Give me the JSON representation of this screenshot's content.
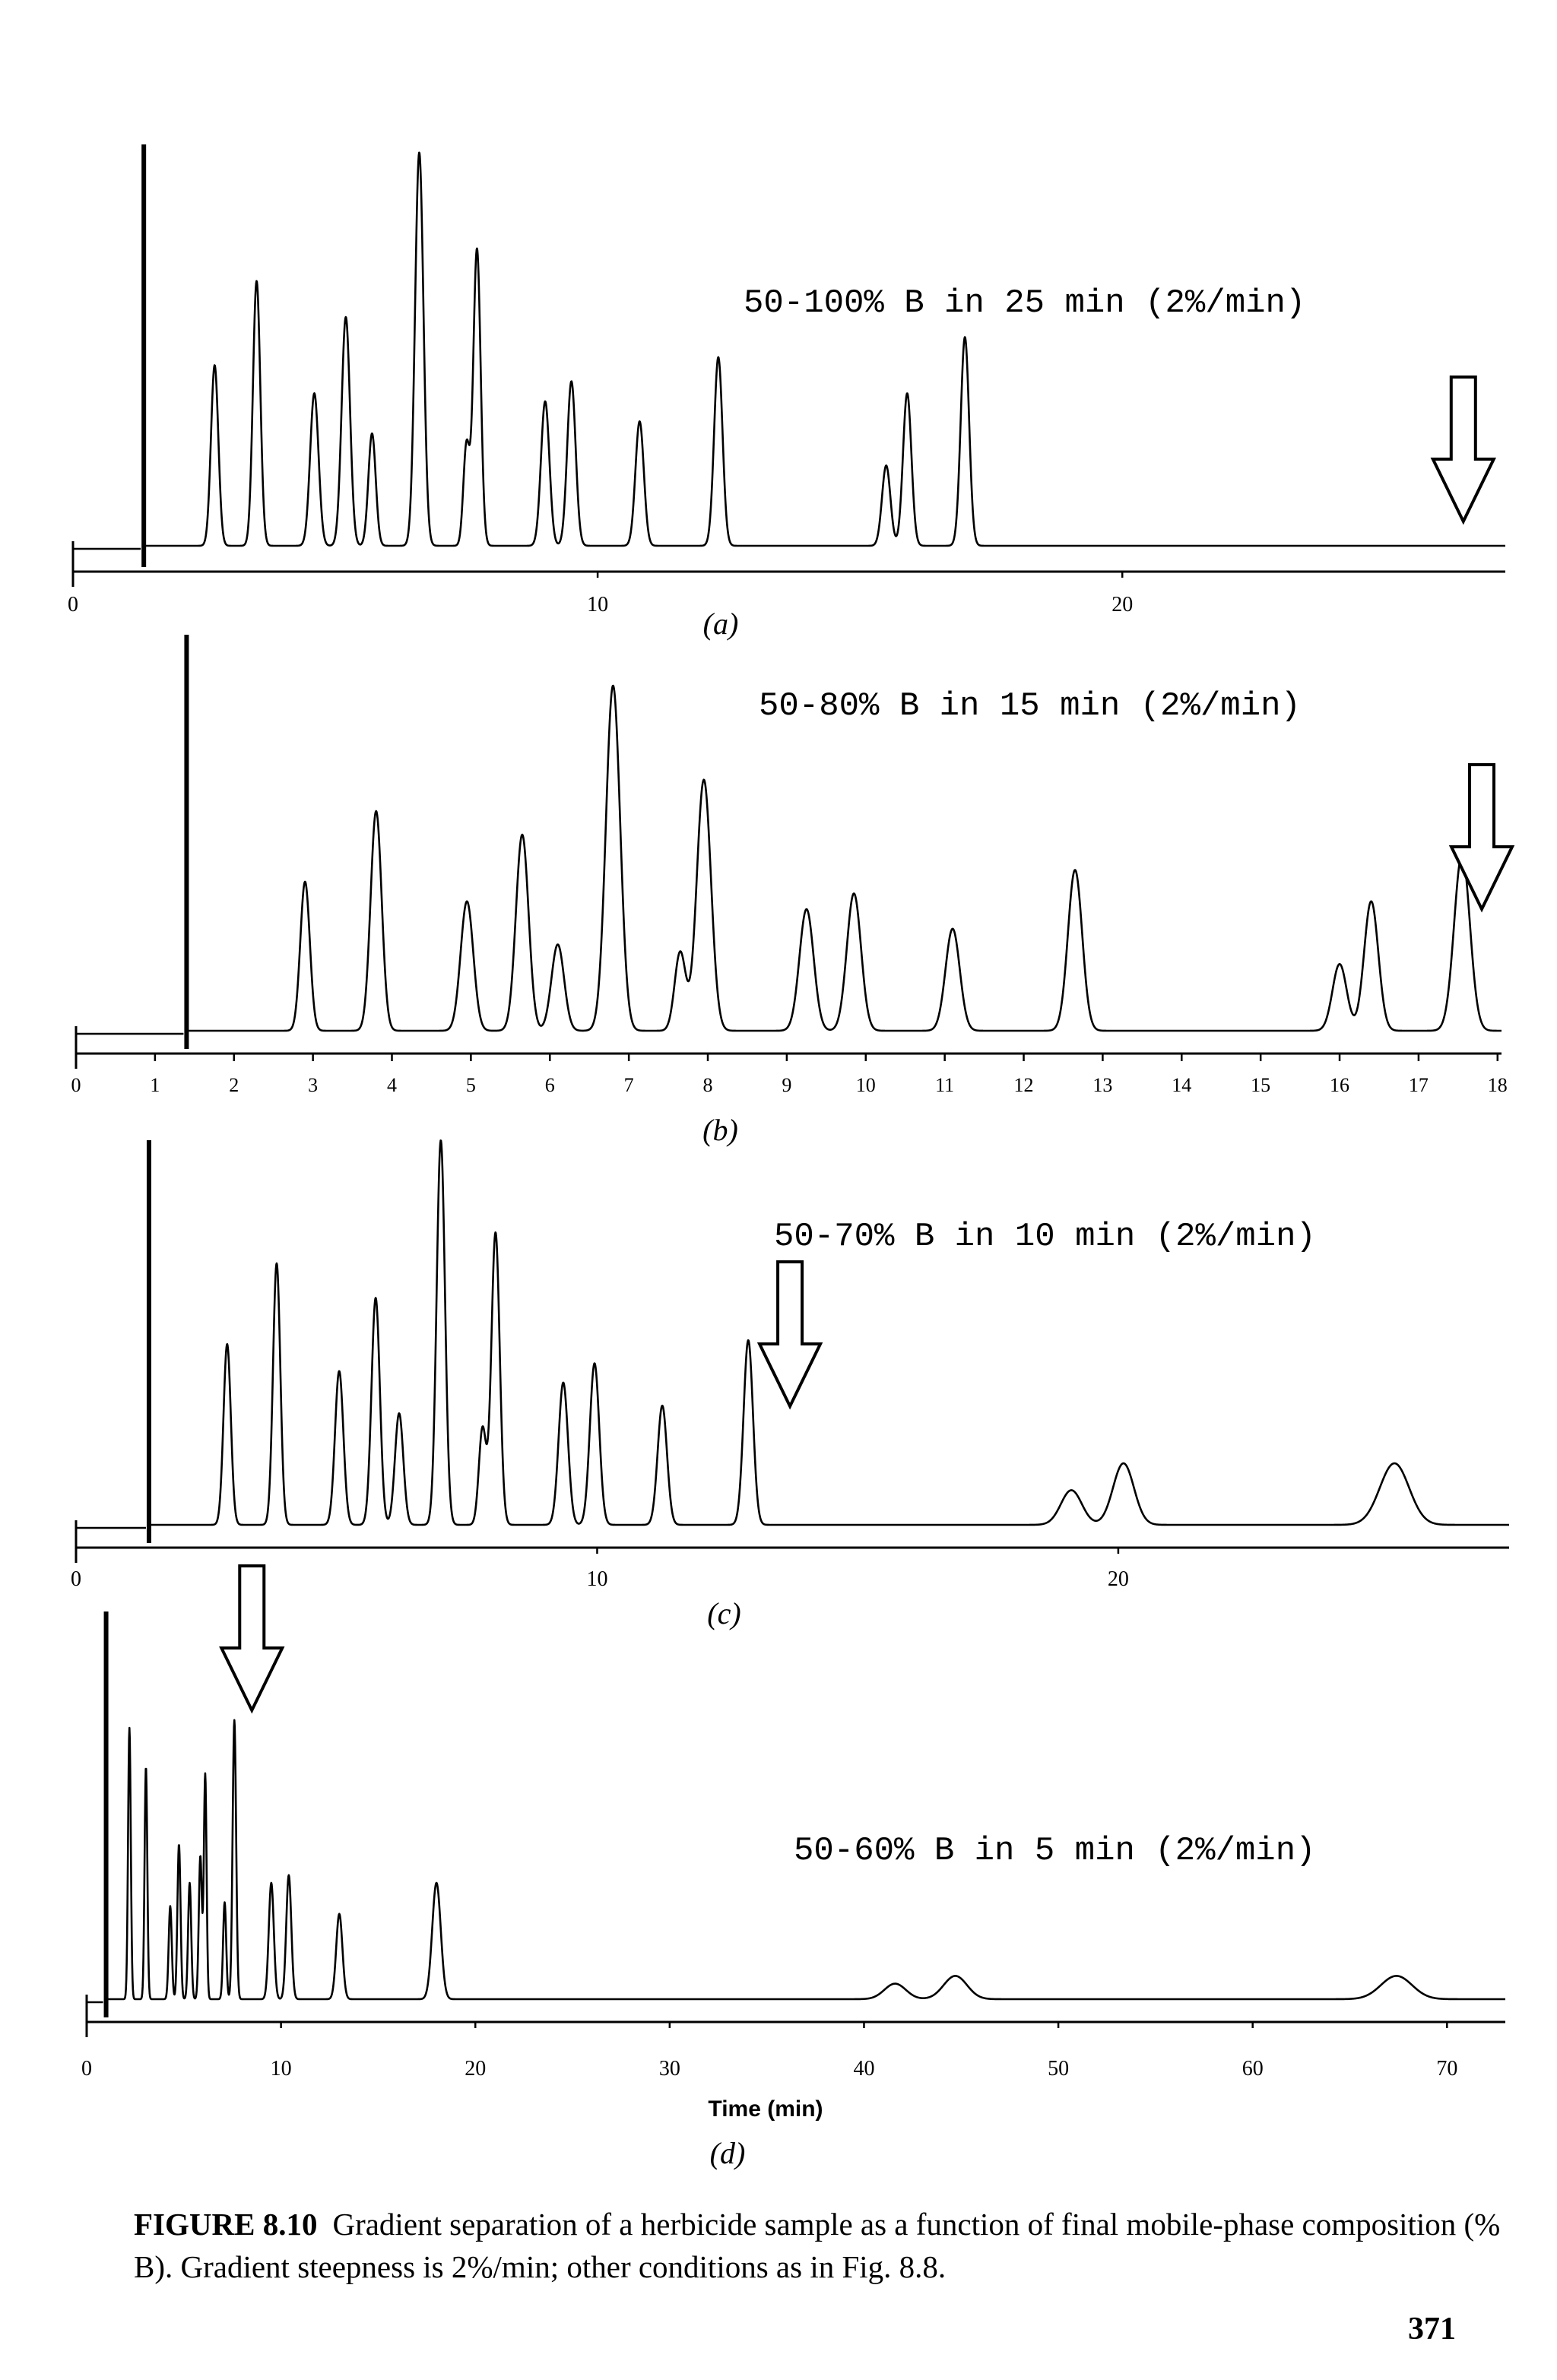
{
  "chart_data": [
    {
      "type": "line",
      "panel_label": "(a)",
      "annotation": "50-100% B in 25 min (2%/min)",
      "xlabel": "",
      "xlim": [
        0,
        27.3
      ],
      "ylim": [
        0,
        1.0
      ],
      "x_ticks": [
        0,
        10,
        20
      ],
      "tick_labels": [
        "0",
        "10",
        "20"
      ],
      "solvent_front": 1.35,
      "arrow_at": 26.5,
      "peaks": [
        {
          "t": 2.7,
          "h": 0.45,
          "w": 0.07
        },
        {
          "t": 3.5,
          "h": 0.66,
          "w": 0.07
        },
        {
          "t": 4.6,
          "h": 0.38,
          "w": 0.08
        },
        {
          "t": 5.2,
          "h": 0.57,
          "w": 0.08
        },
        {
          "t": 5.7,
          "h": 0.28,
          "w": 0.07
        },
        {
          "t": 6.6,
          "h": 0.98,
          "w": 0.08
        },
        {
          "t": 7.5,
          "h": 0.25,
          "w": 0.06
        },
        {
          "t": 7.7,
          "h": 0.74,
          "w": 0.07
        },
        {
          "t": 9.0,
          "h": 0.36,
          "w": 0.08
        },
        {
          "t": 9.5,
          "h": 0.41,
          "w": 0.08
        },
        {
          "t": 10.8,
          "h": 0.31,
          "w": 0.08
        },
        {
          "t": 12.3,
          "h": 0.47,
          "w": 0.08
        },
        {
          "t": 15.5,
          "h": 0.2,
          "w": 0.08
        },
        {
          "t": 15.9,
          "h": 0.38,
          "w": 0.08
        },
        {
          "t": 17.0,
          "h": 0.52,
          "w": 0.08
        }
      ]
    },
    {
      "type": "line",
      "panel_label": "(b)",
      "annotation": "50-80% B in 15 min (2%/min)",
      "xlabel": "",
      "xlim": [
        0,
        18.05
      ],
      "ylim": [
        0,
        1.0
      ],
      "x_ticks": [
        0,
        1,
        2,
        3,
        4,
        5,
        6,
        7,
        8,
        9,
        10,
        11,
        12,
        13,
        14,
        15,
        16,
        17,
        18
      ],
      "tick_labels": [
        "0",
        "1",
        "2",
        "3",
        "4",
        "5",
        "6",
        "7",
        "8",
        "9",
        "10",
        "11",
        "12",
        "13",
        "14",
        "15",
        "16",
        "17",
        "18"
      ],
      "solvent_front": 1.4,
      "arrow_at": 17.8,
      "peaks": [
        {
          "t": 2.9,
          "h": 0.38,
          "w": 0.06
        },
        {
          "t": 3.8,
          "h": 0.56,
          "w": 0.07
        },
        {
          "t": 4.95,
          "h": 0.33,
          "w": 0.08
        },
        {
          "t": 5.65,
          "h": 0.5,
          "w": 0.08
        },
        {
          "t": 6.1,
          "h": 0.22,
          "w": 0.08
        },
        {
          "t": 6.8,
          "h": 0.88,
          "w": 0.09
        },
        {
          "t": 7.65,
          "h": 0.2,
          "w": 0.07
        },
        {
          "t": 7.95,
          "h": 0.64,
          "w": 0.09
        },
        {
          "t": 9.25,
          "h": 0.31,
          "w": 0.09
        },
        {
          "t": 9.85,
          "h": 0.35,
          "w": 0.09
        },
        {
          "t": 11.1,
          "h": 0.26,
          "w": 0.09
        },
        {
          "t": 12.65,
          "h": 0.41,
          "w": 0.09
        },
        {
          "t": 16.0,
          "h": 0.17,
          "w": 0.09
        },
        {
          "t": 16.4,
          "h": 0.33,
          "w": 0.09
        },
        {
          "t": 17.55,
          "h": 0.45,
          "w": 0.1
        }
      ]
    },
    {
      "type": "line",
      "panel_label": "(c)",
      "annotation": "50-70% B in 10 min (2%/min)",
      "xlabel": "",
      "xlim": [
        0,
        27.5
      ],
      "ylim": [
        0,
        1.0
      ],
      "x_ticks": [
        0,
        10,
        20
      ],
      "tick_labels": [
        "0",
        "10",
        "20"
      ],
      "solvent_front": 1.4,
      "arrow_at": 13.7,
      "peaks": [
        {
          "t": 2.9,
          "h": 0.47,
          "w": 0.07
        },
        {
          "t": 3.85,
          "h": 0.68,
          "w": 0.07
        },
        {
          "t": 5.05,
          "h": 0.4,
          "w": 0.08
        },
        {
          "t": 5.75,
          "h": 0.59,
          "w": 0.08
        },
        {
          "t": 6.2,
          "h": 0.29,
          "w": 0.08
        },
        {
          "t": 7.0,
          "h": 1.0,
          "w": 0.08
        },
        {
          "t": 7.8,
          "h": 0.25,
          "w": 0.07
        },
        {
          "t": 8.05,
          "h": 0.76,
          "w": 0.08
        },
        {
          "t": 9.35,
          "h": 0.37,
          "w": 0.09
        },
        {
          "t": 9.95,
          "h": 0.42,
          "w": 0.09
        },
        {
          "t": 11.25,
          "h": 0.31,
          "w": 0.09
        },
        {
          "t": 12.9,
          "h": 0.48,
          "w": 0.09
        },
        {
          "t": 19.1,
          "h": 0.09,
          "w": 0.2
        },
        {
          "t": 20.1,
          "h": 0.16,
          "w": 0.2
        },
        {
          "t": 25.3,
          "h": 0.16,
          "w": 0.28
        }
      ]
    },
    {
      "type": "line",
      "panel_label": "(d)",
      "annotation": "50-60% B in 5 min (2%/min)",
      "xlabel": "Time (min)",
      "xlim": [
        0,
        73
      ],
      "ylim": [
        0,
        1.0
      ],
      "x_ticks": [
        0,
        10,
        20,
        30,
        40,
        50,
        60,
        70
      ],
      "tick_labels": [
        "0",
        "10",
        "20",
        "30",
        "40",
        "50",
        "60",
        "70"
      ],
      "solvent_front": 1.0,
      "arrow_at": 8.5,
      "peaks": [
        {
          "t": 2.2,
          "h": 0.7,
          "w": 0.07
        },
        {
          "t": 3.05,
          "h": 0.6,
          "w": 0.07
        },
        {
          "t": 4.3,
          "h": 0.24,
          "w": 0.08
        },
        {
          "t": 4.75,
          "h": 0.4,
          "w": 0.08
        },
        {
          "t": 5.3,
          "h": 0.3,
          "w": 0.08
        },
        {
          "t": 5.85,
          "h": 0.37,
          "w": 0.08
        },
        {
          "t": 6.1,
          "h": 0.58,
          "w": 0.07
        },
        {
          "t": 7.1,
          "h": 0.25,
          "w": 0.08
        },
        {
          "t": 7.6,
          "h": 0.72,
          "w": 0.09
        },
        {
          "t": 9.5,
          "h": 0.3,
          "w": 0.13
        },
        {
          "t": 10.4,
          "h": 0.32,
          "w": 0.13
        },
        {
          "t": 13.0,
          "h": 0.22,
          "w": 0.16
        },
        {
          "t": 18.0,
          "h": 0.3,
          "w": 0.22
        },
        {
          "t": 41.6,
          "h": 0.04,
          "w": 0.55
        },
        {
          "t": 44.7,
          "h": 0.06,
          "w": 0.6
        },
        {
          "t": 67.4,
          "h": 0.06,
          "w": 0.8
        }
      ]
    }
  ],
  "caption": {
    "label": "FIGURE 8.10",
    "text": "Gradient separation of a herbicide sample as a function of final mobile-phase composition (% B). Gradient steepness is 2%/min; other conditions as in Fig. 8.8."
  },
  "page_number": "371",
  "colors": {
    "ink": "#000000",
    "paper": "#ffffff"
  }
}
